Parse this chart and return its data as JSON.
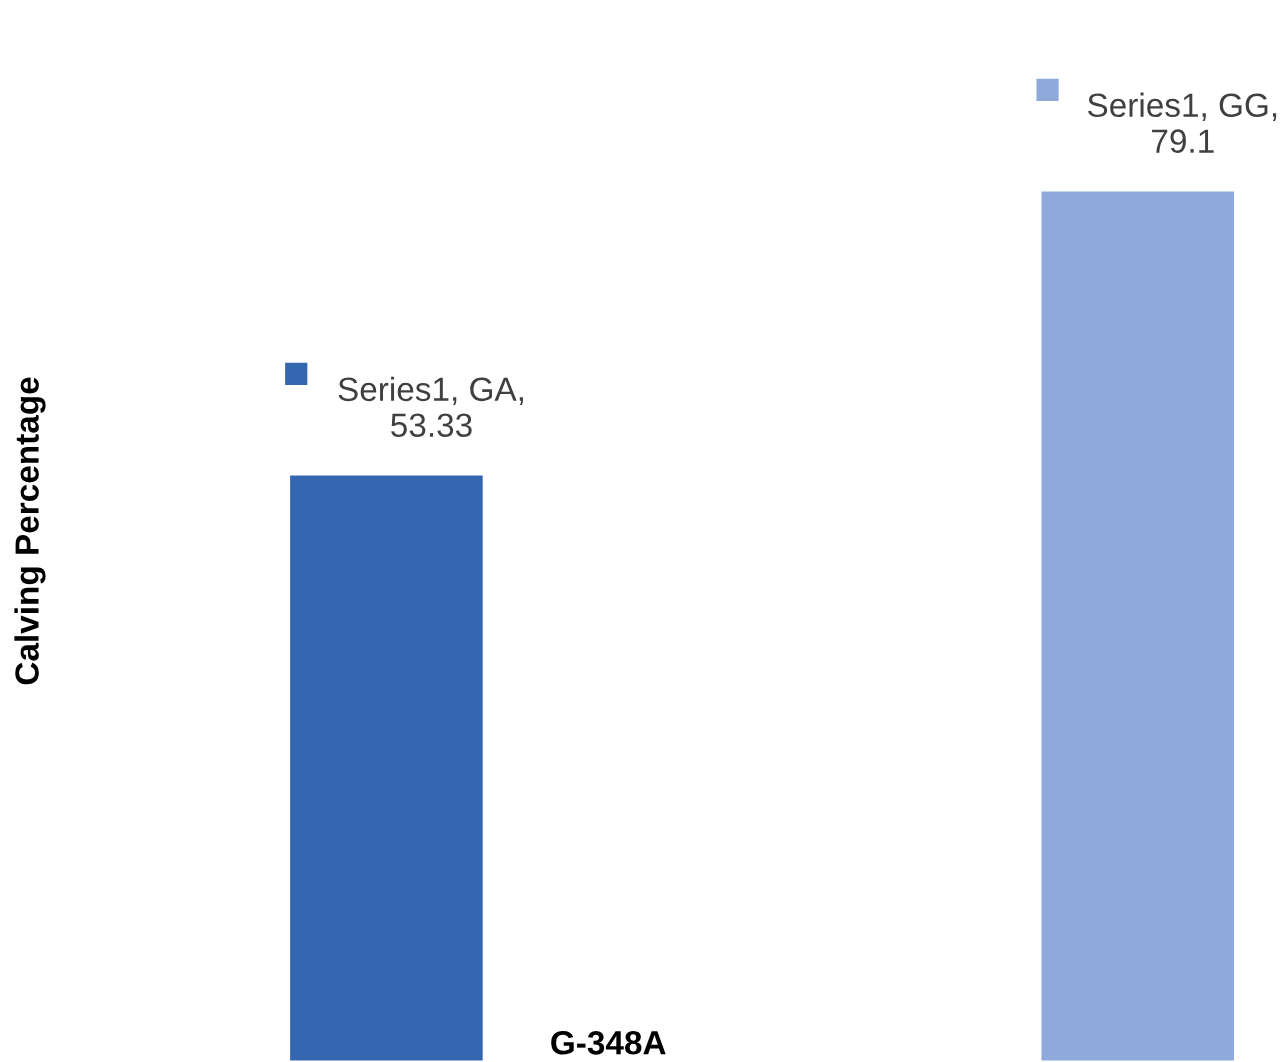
{
  "chart_data": {
    "type": "bar",
    "xlabel": "G-348A",
    "ylabel": "Calving Percentage",
    "categories": [
      null,
      null
    ],
    "series": [
      {
        "colors": [
          "#3566b0",
          "#8eaadb"
        ],
        "values": [
          53.33,
          79.1
        ],
        "value_labels": [
          "Series1, GA, 53.33",
          "Series1, GG, 79.1"
        ]
      }
    ]
  }
}
